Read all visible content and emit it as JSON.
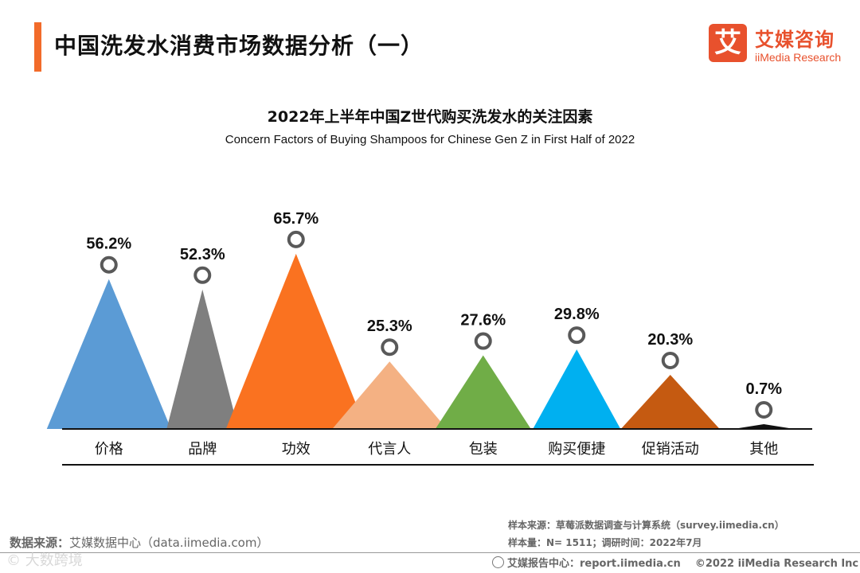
{
  "header": {
    "title": "中国洗发水消费市场数据分析（一）",
    "logo_mark": "艾",
    "logo_cn": "艾媒咨询",
    "logo_en": "iiMedia Research"
  },
  "colors": {
    "accent": "#f26b2a",
    "series": [
      "#5b9bd5",
      "#7f7f7f",
      "#fa7220",
      "#f4b183",
      "#70ad47",
      "#00b0f0",
      "#c55a11",
      "#111111"
    ]
  },
  "chart_data": {
    "type": "bar",
    "title": "2022年上半年中国Z世代购买洗发水的关注因素",
    "subtitle": "Concern Factors of Buying Shampoos for Chinese Gen Z in First Half of 2022",
    "categories": [
      "价格",
      "品牌",
      "功效",
      "代言人",
      "包装",
      "购买便捷",
      "促销活动",
      "其他"
    ],
    "values": [
      56.2,
      52.3,
      65.7,
      25.3,
      27.6,
      29.8,
      20.3,
      0.7
    ],
    "value_labels": [
      "56.2%",
      "52.3%",
      "65.7%",
      "25.3%",
      "27.6%",
      "29.8%",
      "20.3%",
      "0.7%"
    ],
    "unit": "%",
    "ylim": [
      0,
      70
    ],
    "xlabel": "",
    "ylabel": ""
  },
  "footer": {
    "source_label": "数据来源：",
    "source_text": "艾媒数据中心（data.iimedia.com）",
    "sample_source": "样本来源：草莓派数据调查与计算系统（survey.iimedia.cn）",
    "sample_size": "样本量：N= 1511；调研时间：2022年7月",
    "report_center": "艾媒报告中心：report.iimedia.cn",
    "copyright": "©2022  iiMedia Research  Inc",
    "watermark": "© 大数跨境"
  }
}
